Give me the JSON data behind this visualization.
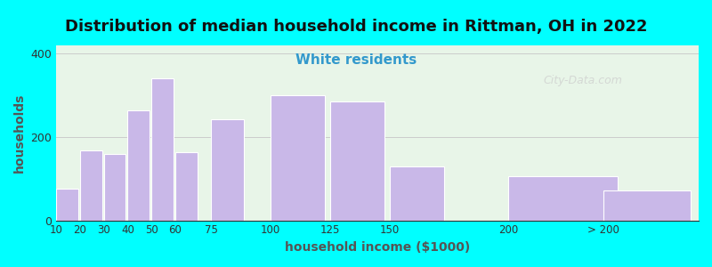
{
  "title": "Distribution of median household income in Rittman, OH in 2022",
  "subtitle": "White residents",
  "xlabel": "household income ($1000)",
  "ylabel": "households",
  "background_outer": "#00FFFF",
  "background_inner_left": "#e8f5e8",
  "background_inner_right": "#f5f5f5",
  "bar_color": "#c9b8e8",
  "bar_edgecolor": "#ffffff",
  "title_fontsize": 13,
  "subtitle_fontsize": 11,
  "subtitle_color": "#3399cc",
  "ylabel_color": "#555555",
  "xlabel_color": "#555555",
  "ylim": [
    0,
    420
  ],
  "yticks": [
    0,
    200,
    400
  ],
  "categories": [
    "10",
    "20",
    "30",
    "40",
    "50",
    "60",
    "75",
    "100",
    "125",
    "150",
    "200",
    "> 200"
  ],
  "bar_heights": [
    75,
    168,
    160,
    263,
    340,
    163,
    243,
    300,
    285,
    130,
    107,
    72
  ],
  "bar_widths_relative": [
    1,
    1,
    1,
    1,
    1,
    1,
    1,
    1,
    1,
    1,
    1,
    1
  ],
  "watermark": "City-Data.com"
}
